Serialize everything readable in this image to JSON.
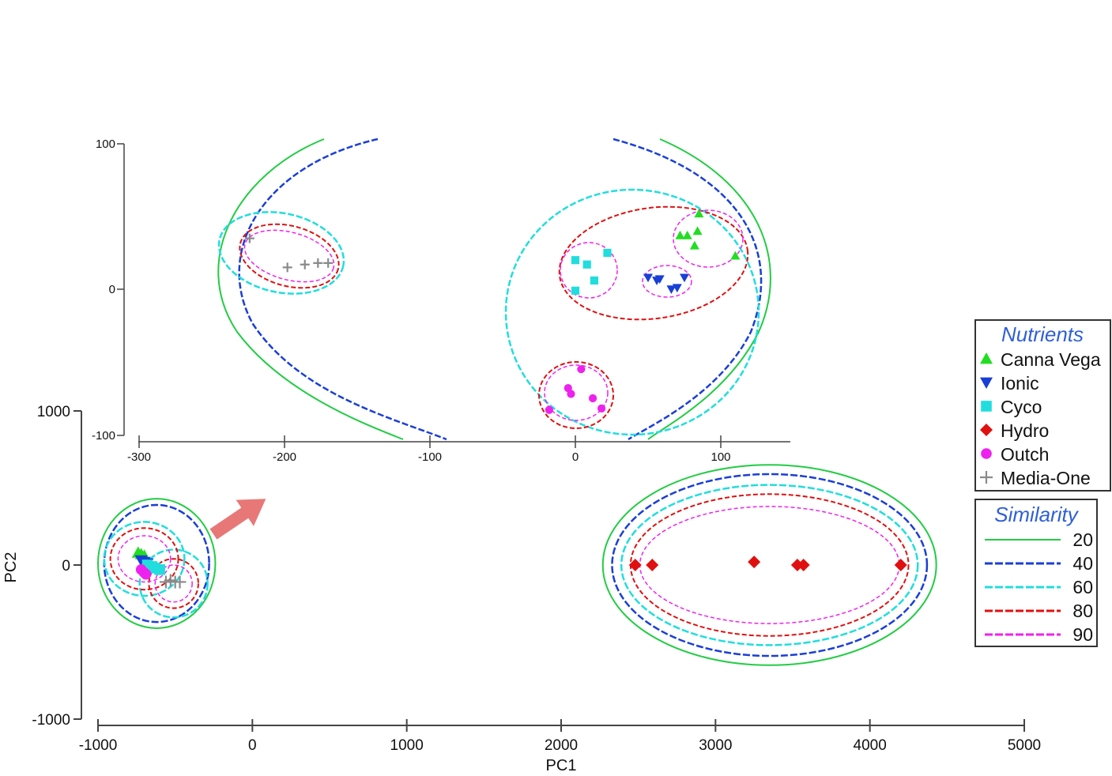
{
  "chart_data": [
    {
      "type": "scatter",
      "title": "",
      "xlabel": "PC1",
      "ylabel": "PC2",
      "xlim": [
        -1000,
        5000
      ],
      "ylim": [
        -1000,
        1000
      ],
      "x_ticks": [
        "-1000",
        "0",
        "1000",
        "2000",
        "3000",
        "4000",
        "5000"
      ],
      "y_ticks": [
        "1000",
        "0",
        "-1000"
      ],
      "grid": false,
      "series": [
        {
          "name": "Canna Vega",
          "color": "#22dd22",
          "marker": "triangle-up",
          "points": [
            [
              -740,
              80
            ],
            [
              -720,
              70
            ],
            [
              -700,
              60
            ]
          ]
        },
        {
          "name": "Ionic",
          "color": "#1a3fd6",
          "marker": "triangle-down",
          "points": [
            [
              -720,
              30
            ],
            [
              -700,
              20
            ],
            [
              -680,
              10
            ]
          ]
        },
        {
          "name": "Cyco",
          "color": "#22dddd",
          "marker": "square",
          "points": [
            [
              -680,
              0
            ],
            [
              -650,
              -10
            ],
            [
              -630,
              -20
            ],
            [
              -600,
              -30
            ]
          ]
        },
        {
          "name": "Hydro",
          "color": "#e01010",
          "marker": "diamond",
          "points": [
            [
              2480,
              0
            ],
            [
              2590,
              0
            ],
            [
              3250,
              20
            ],
            [
              3530,
              0
            ],
            [
              3570,
              0
            ],
            [
              4200,
              0
            ]
          ]
        },
        {
          "name": "Outch",
          "color": "#ee22ee",
          "marker": "circle",
          "points": [
            [
              -720,
              -30
            ],
            [
              -700,
              -50
            ],
            [
              -690,
              -60
            ]
          ]
        },
        {
          "name": "Media-One",
          "color": "#8a8a8a",
          "marker": "plus",
          "points": [
            [
              -560,
              -110
            ],
            [
              -530,
              -100
            ],
            [
              -500,
              -110
            ],
            [
              -470,
              -110
            ]
          ]
        }
      ],
      "similarity_contours": [
        {
          "level": "20",
          "ellipses": [
            [
              -620,
              10,
              380,
              420
            ],
            [
              3350,
              0,
              1080,
              650
            ]
          ]
        },
        {
          "level": "40",
          "ellipses": [
            [
              -620,
              10,
              340,
              380
            ],
            [
              3350,
              0,
              1020,
              590
            ]
          ]
        },
        {
          "level": "60",
          "ellipses": [
            [
              -700,
              40,
              260,
              240
            ],
            [
              -510,
              -120,
              220,
              220
            ],
            [
              3350,
              0,
              960,
              520
            ]
          ]
        },
        {
          "level": "80",
          "ellipses": [
            [
              -700,
              40,
              220,
              200
            ],
            [
              -510,
              -120,
              160,
              160
            ],
            [
              3350,
              0,
              900,
              460
            ]
          ]
        },
        {
          "level": "90",
          "ellipses": [
            [
              -700,
              40,
              170,
              150
            ],
            [
              -510,
              -120,
              120,
              120
            ],
            [
              3350,
              0,
              840,
              380
            ]
          ]
        }
      ]
    },
    {
      "type": "scatter",
      "title": "",
      "xlabel": "",
      "ylabel": "",
      "xlim": [
        -300,
        150
      ],
      "ylim": [
        -100,
        100
      ],
      "x_ticks": [
        "-300",
        "-200",
        "-100",
        "0",
        "100"
      ],
      "y_ticks": [
        "100",
        "0",
        "-100"
      ],
      "grid": false,
      "series": [
        {
          "name": "Canna Vega",
          "color": "#22dd22",
          "marker": "triangle-up",
          "points": [
            [
              85,
              52
            ],
            [
              72,
              37
            ],
            [
              77,
              37
            ],
            [
              84,
              40
            ],
            [
              82,
              30
            ],
            [
              110,
              23
            ]
          ]
        },
        {
          "name": "Ionic",
          "color": "#1a3fd6",
          "marker": "triangle-down",
          "points": [
            [
              50,
              8
            ],
            [
              56,
              6
            ],
            [
              58,
              7
            ],
            [
              66,
              0
            ],
            [
              70,
              1
            ],
            [
              75,
              8
            ]
          ]
        },
        {
          "name": "Cyco",
          "color": "#22dddd",
          "marker": "square",
          "points": [
            [
              0,
              20
            ],
            [
              8,
              17
            ],
            [
              22,
              25
            ],
            [
              13,
              6
            ],
            [
              0,
              -1
            ]
          ]
        },
        {
          "name": "Hydro",
          "color": "#e01010",
          "marker": "diamond",
          "points": []
        },
        {
          "name": "Outch",
          "color": "#ee22ee",
          "marker": "circle",
          "points": [
            [
              4,
              -55
            ],
            [
              -5,
              -68
            ],
            [
              -3,
              -72
            ],
            [
              12,
              -75
            ],
            [
              -18,
              -83
            ],
            [
              18,
              -82
            ]
          ]
        },
        {
          "name": "Media-One",
          "color": "#8a8a8a",
          "marker": "plus",
          "points": [
            [
              -224,
              35
            ],
            [
              -198,
              15
            ],
            [
              -186,
              17
            ],
            [
              -177,
              18
            ],
            [
              -170,
              18
            ]
          ]
        }
      ]
    }
  ],
  "legend": {
    "nutrients_title": "Nutrients",
    "nutrients": [
      {
        "label": "Canna Vega",
        "color": "#22dd22",
        "marker": "triangle-up"
      },
      {
        "label": "Ionic",
        "color": "#1a3fd6",
        "marker": "triangle-down"
      },
      {
        "label": "Cyco",
        "color": "#22dddd",
        "marker": "square"
      },
      {
        "label": "Hydro",
        "color": "#e01010",
        "marker": "diamond"
      },
      {
        "label": "Outch",
        "color": "#ee22ee",
        "marker": "circle"
      },
      {
        "label": "Media-One",
        "color": "#8a8a8a",
        "marker": "plus"
      }
    ],
    "similarity_title": "Similarity",
    "similarity": [
      {
        "label": "20",
        "color": "#22cc44",
        "dash": "solid"
      },
      {
        "label": "40",
        "color": "#1a3fd6",
        "dash": "dashed"
      },
      {
        "label": "60",
        "color": "#22dddd",
        "dash": "dashed"
      },
      {
        "label": "80",
        "color": "#e01010",
        "dash": "dashed"
      },
      {
        "label": "90",
        "color": "#ee22ee",
        "dash": "dashed"
      }
    ]
  },
  "colors": {
    "arrow": "#e87878",
    "contour_20": "#22cc44",
    "contour_40": "#1a3fd6",
    "contour_60": "#22dddd",
    "contour_80": "#e01010",
    "contour_90": "#ee22ee"
  }
}
